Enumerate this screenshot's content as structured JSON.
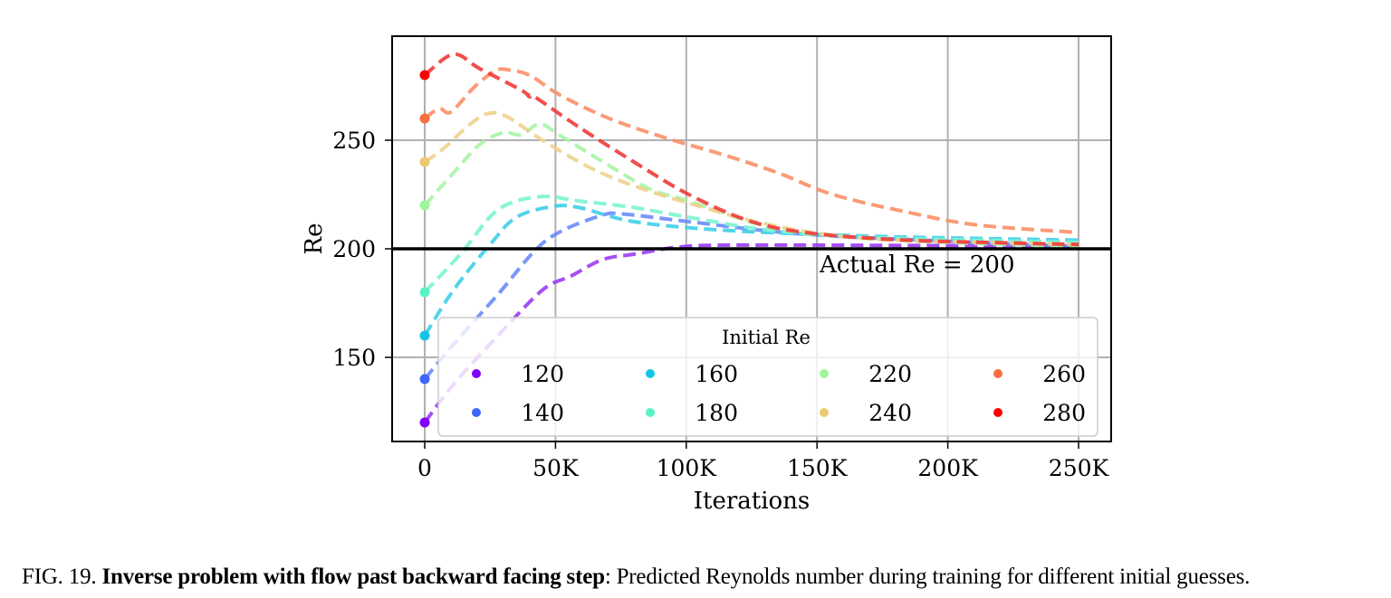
{
  "chart_data": {
    "type": "line",
    "title": "",
    "xlabel": "Iterations",
    "ylabel": "Re",
    "xlim": [
      -12,
      263
    ],
    "ylim": [
      113,
      302
    ],
    "x_unit": "K iterations",
    "grid": true,
    "xticks": [
      0,
      50,
      100,
      150,
      200,
      250
    ],
    "xtick_labels": [
      "0",
      "50K",
      "100K",
      "150K",
      "200K",
      "250K"
    ],
    "yticks": [
      150,
      200,
      250
    ],
    "ytick_labels": [
      "150",
      "200",
      "250"
    ],
    "reference_line": {
      "y": 200,
      "label": "Actual Re = 200",
      "color": "#000000"
    },
    "legend": {
      "title": "Initial Re",
      "placement": "lower-right",
      "columns": 4
    },
    "series": [
      {
        "name": "120",
        "color": "#8000ff",
        "line_color": "#9b3cf5",
        "x": [
          0,
          11,
          28,
          45,
          56,
          68,
          80,
          101,
          132,
          170,
          210,
          250
        ],
        "y": [
          120,
          137.5,
          160,
          181,
          187.5,
          195,
          197.5,
          201.2,
          201.7,
          201.6,
          201.4,
          201.2
        ]
      },
      {
        "name": "140",
        "color": "#3e66fb",
        "line_color": "#6a8cf7",
        "x": [
          0,
          11,
          28,
          42,
          52,
          68,
          76,
          101,
          142,
          190,
          250
        ],
        "y": [
          140,
          156,
          179,
          199,
          208,
          215.5,
          216,
          212.5,
          207,
          204,
          201
        ]
      },
      {
        "name": "160",
        "color": "#14c4e6",
        "line_color": "#3fcfe8",
        "x": [
          0,
          11,
          25,
          35,
          49,
          59,
          80,
          115,
          166,
          210,
          250
        ],
        "y": [
          160,
          181,
          202,
          214.5,
          219.5,
          219,
          212.5,
          208.5,
          206,
          204.8,
          204
        ]
      },
      {
        "name": "180",
        "color": "#58f4c6",
        "line_color": "#7af4d2",
        "x": [
          0,
          14,
          28,
          44,
          59,
          80,
          101,
          132,
          166,
          210,
          250
        ],
        "y": [
          180,
          198,
          218,
          224,
          222,
          219,
          214.5,
          208.5,
          205.5,
          204,
          203
        ]
      },
      {
        "name": "220",
        "color": "#9ef59a",
        "line_color": "#a9f4a6",
        "x": [
          0,
          11,
          21,
          30,
          37,
          44,
          52,
          73,
          87,
          101,
          132,
          166,
          210,
          250
        ],
        "y": [
          220,
          235,
          248,
          253.5,
          252.5,
          257.5,
          252,
          236.5,
          227,
          222,
          210,
          205,
          202.5,
          201
        ]
      },
      {
        "name": "240",
        "color": "#ecc872",
        "line_color": "#f0d08e",
        "x": [
          0,
          7,
          18,
          25,
          32,
          45,
          63,
          80,
          101,
          132,
          166,
          210,
          250
        ],
        "y": [
          240,
          246,
          258,
          262.5,
          260.5,
          250,
          237.5,
          229,
          221,
          211,
          205,
          203,
          202
        ]
      },
      {
        "name": "260",
        "color": "#f6703e",
        "line_color": "#fb8f66",
        "x": [
          0,
          5.5,
          10,
          19,
          27,
          31.5,
          40,
          50,
          63,
          76,
          95,
          115,
          135,
          156,
          184,
          211,
          250
        ],
        "y": [
          260,
          264.6,
          263,
          274.6,
          282,
          282.5,
          280,
          272,
          264,
          257.5,
          250,
          243,
          235,
          225,
          217,
          211,
          207.5
        ]
      },
      {
        "name": "280",
        "color": "#ff0000",
        "line_color": "#f23a3a",
        "x": [
          0,
          11,
          21,
          37,
          40,
          42,
          59,
          80,
          101,
          125,
          149,
          184,
          220,
          250
        ],
        "y": [
          280,
          289.6,
          283,
          273,
          270,
          270,
          256,
          240,
          225,
          212.5,
          207,
          204,
          202.8,
          202
        ]
      }
    ]
  },
  "caption": {
    "prefix": "FIG. 19. ",
    "bold": "Inverse problem with flow past backward facing step",
    "rest": ": Predicted Reynolds number during training for different initial guesses."
  }
}
